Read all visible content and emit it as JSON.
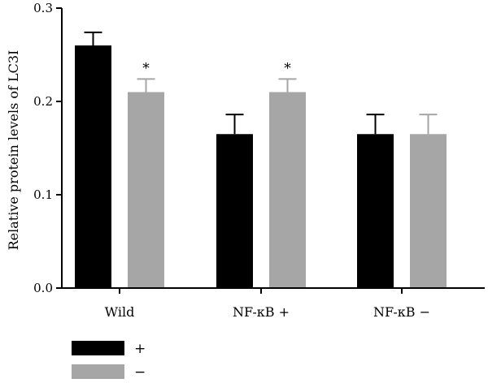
{
  "chart_data": {
    "type": "bar",
    "ylabel": "Relative protein levels of LC3I",
    "xlabel": "",
    "title": "",
    "ylim": [
      0,
      0.3
    ],
    "yticks": [
      "0.0",
      "0.1",
      "0.2",
      "0.3"
    ],
    "categories": [
      "Wild",
      "NF-κB +",
      "NF-κB −"
    ],
    "series": [
      {
        "name": "+",
        "color": "#000000",
        "values": [
          0.26,
          0.165,
          0.165
        ],
        "errors": [
          0.014,
          0.021,
          0.021
        ],
        "annotations": [
          "",
          "",
          ""
        ]
      },
      {
        "name": "−",
        "color": "#a6a6a6",
        "values": [
          0.21,
          0.21,
          0.165
        ],
        "errors": [
          0.014,
          0.014,
          0.021
        ],
        "annotations": [
          "*",
          "*",
          ""
        ]
      }
    ],
    "legend_position": "bottom-left",
    "grid": false
  }
}
